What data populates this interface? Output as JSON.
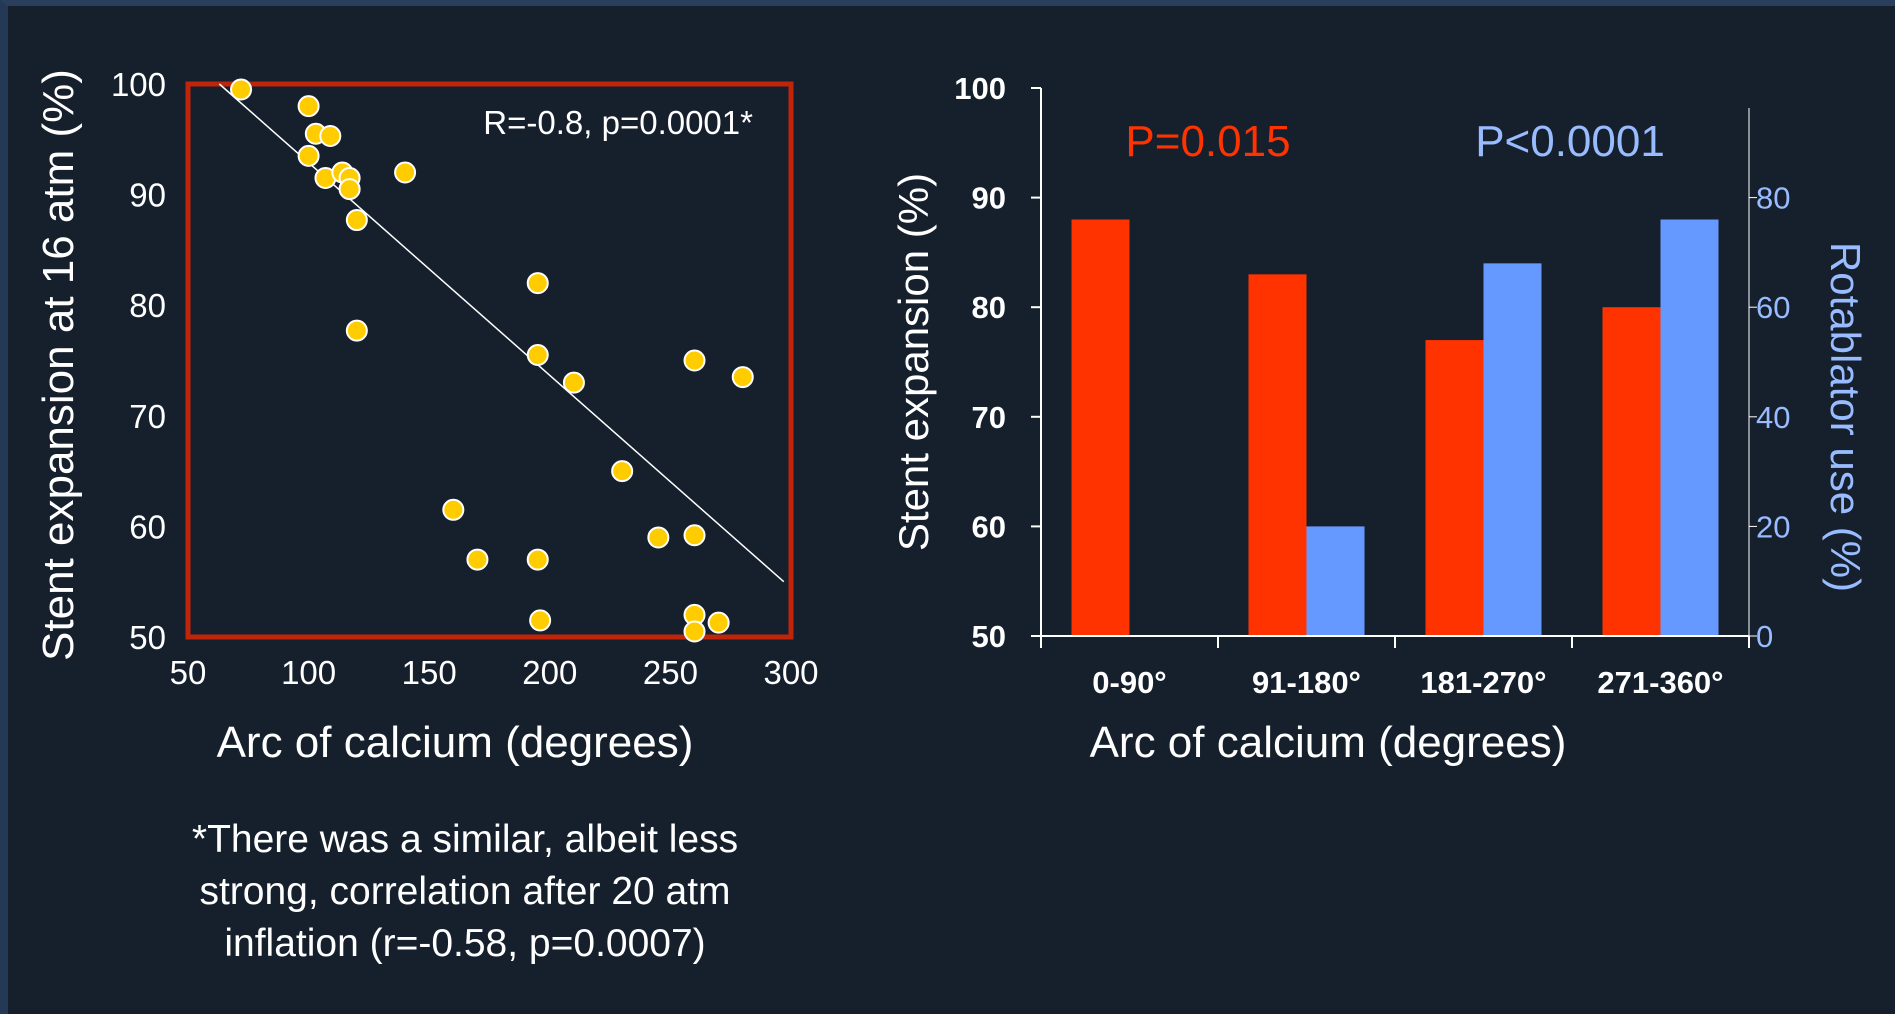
{
  "colors": {
    "background": "#16202d",
    "frame": "#c0250a",
    "scatter_points": "#ffcc00",
    "bar_stent": "#ff3300",
    "bar_rotablator": "#6699ff",
    "p_stent_text": "#ff3300",
    "p_rota_text": "#99bbff"
  },
  "footnote": {
    "lines": [
      "*There was a similar, albeit less",
      "strong, correlation after 20 atm",
      "inflation (r=-0.58, p=0.0007)"
    ]
  },
  "chart_data": [
    {
      "type": "scatter",
      "xlabel": "Arc of calcium (degrees)",
      "ylabel": "Stent expansion at 16 atm (%)",
      "annotation": "R=-0.8, p=0.0001*",
      "xlim": [
        50,
        300
      ],
      "ylim": [
        50,
        100
      ],
      "xticks": [
        50,
        100,
        150,
        200,
        250,
        300
      ],
      "yticks": [
        50,
        60,
        70,
        80,
        90,
        100
      ],
      "trendline": {
        "x": [
          63,
          297
        ],
        "y": [
          100,
          55
        ]
      },
      "points": [
        [
          72,
          99.5
        ],
        [
          100,
          98
        ],
        [
          100,
          93.5
        ],
        [
          103,
          95.5
        ],
        [
          107,
          91.5
        ],
        [
          109,
          95.3
        ],
        [
          114,
          92
        ],
        [
          117,
          91.5
        ],
        [
          117,
          90.5
        ],
        [
          120,
          87.7
        ],
        [
          120,
          77.7
        ],
        [
          140,
          92
        ],
        [
          160,
          61.5
        ],
        [
          170,
          57
        ],
        [
          195,
          82
        ],
        [
          195,
          75.5
        ],
        [
          195,
          57
        ],
        [
          196,
          51.5
        ],
        [
          210,
          73
        ],
        [
          230,
          65
        ],
        [
          245,
          59
        ],
        [
          260,
          75
        ],
        [
          260,
          59.2
        ],
        [
          260,
          52
        ],
        [
          260,
          50.5
        ],
        [
          270,
          51.3
        ],
        [
          280,
          73.5
        ]
      ]
    },
    {
      "type": "bar",
      "xlabel": "Arc of calcium (degrees)",
      "ylabel": "Stent expansion (%)",
      "y2label": "Rotablator use (%)",
      "categories": [
        "0-90°",
        "91-180°",
        "181-270°",
        "271-360°"
      ],
      "ylim": [
        50,
        100
      ],
      "yticks": [
        50,
        60,
        70,
        80,
        90,
        100
      ],
      "y2lim": [
        0,
        100
      ],
      "y2ticks": [
        0,
        20,
        40,
        60,
        80
      ],
      "annotations": [
        "P=0.015",
        "P<0.0001"
      ],
      "series": [
        {
          "axis": "left",
          "values": [
            88,
            83,
            77,
            80
          ]
        },
        {
          "axis": "right",
          "values": [
            0,
            20,
            68,
            76
          ]
        }
      ]
    }
  ]
}
